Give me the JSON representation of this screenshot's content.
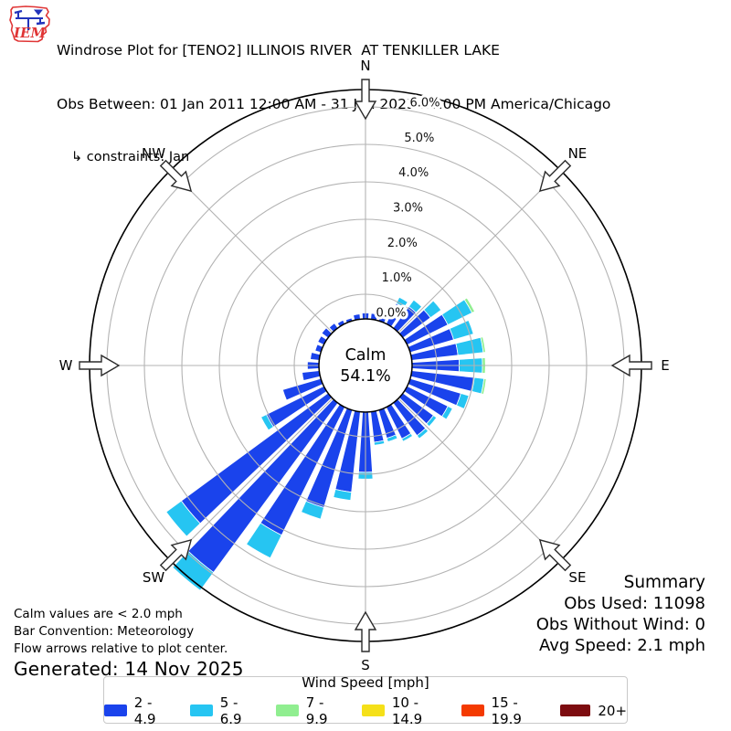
{
  "header": {
    "title": "Windrose Plot for [TENO2] ILLINOIS RIVER  AT TENKILLER LAKE",
    "subtitle": "Obs Between: 01 Jan 2011 12:00 AM - 31 Jan 2025 11:00 PM America/Chicago",
    "constraints": "↳ constraints: Jan",
    "logo_text": "IEM"
  },
  "notes": {
    "line1": "Calm values are < 2.0 mph",
    "line2": "Bar Convention: Meteorology",
    "line3": "Flow arrows relative to plot center.",
    "generated": "Generated: 14 Nov 2025"
  },
  "summary": {
    "title": "Summary",
    "obs_used": "Obs Used: 11098",
    "obs_without_wind": "Obs Without Wind: 0",
    "avg_speed": "Avg Speed: 2.1 mph"
  },
  "legend": {
    "title": "Wind Speed [mph]"
  },
  "chart_data": {
    "type": "windrose",
    "title": "Windrose Plot for [TENO2] ILLINOIS RIVER AT TENKILLER LAKE",
    "units": "mph",
    "calm": {
      "label": "Calm",
      "value": "54.1%",
      "threshold_note": "Calm values are < 2.0 mph"
    },
    "radial_axis": {
      "unit": "%",
      "min": 0.0,
      "max": 6.0,
      "grid_step": 1.0
    },
    "ring_labels": [
      "0.0%",
      "1.0%",
      "2.0%",
      "3.0%",
      "4.0%",
      "5.0%",
      "6.0%"
    ],
    "directions": [
      "N",
      "NE",
      "E",
      "SE",
      "S",
      "SW",
      "W",
      "NW"
    ],
    "direction_azimuths": [
      0,
      45,
      90,
      135,
      180,
      225,
      270,
      315
    ],
    "speed_bins": [
      {
        "label": "2 - 4.9",
        "color": "#1a43ec"
      },
      {
        "label": "5 - 6.9",
        "color": "#26c5f2"
      },
      {
        "label": "7 - 9.9",
        "color": "#90ee90"
      },
      {
        "label": "10 - 14.9",
        "color": "#f5e019"
      },
      {
        "label": "15 - 19.9",
        "color": "#f43a00"
      },
      {
        "label": "20+",
        "color": "#7d0c10"
      }
    ],
    "petals_note": "36 sectors, azimuth degrees clockwise from North; stacked segment values are frequency % for speed bins 2-4.9 / 5-6.9 / 7-9.9 mph",
    "petals": [
      {
        "d": 0,
        "s": [
          0.5,
          0.0,
          0.0
        ]
      },
      {
        "d": 10,
        "s": [
          0.5,
          0.0,
          0.0
        ]
      },
      {
        "d": 20,
        "s": [
          0.6,
          0.06,
          0.0
        ]
      },
      {
        "d": 30,
        "s": [
          0.95,
          0.18,
          0.0
        ]
      },
      {
        "d": 40,
        "s": [
          1.05,
          0.22,
          0.0
        ]
      },
      {
        "d": 50,
        "s": [
          1.25,
          0.35,
          0.0
        ]
      },
      {
        "d": 60,
        "s": [
          1.55,
          0.72,
          0.08
        ]
      },
      {
        "d": 70,
        "s": [
          1.55,
          0.55,
          0.0
        ]
      },
      {
        "d": 80,
        "s": [
          1.58,
          0.68,
          0.06
        ]
      },
      {
        "d": 90,
        "s": [
          1.6,
          0.62,
          0.08
        ]
      },
      {
        "d": 100,
        "s": [
          2.02,
          0.26,
          0.06
        ]
      },
      {
        "d": 110,
        "s": [
          1.75,
          0.22,
          0.0
        ]
      },
      {
        "d": 120,
        "s": [
          1.55,
          0.14,
          0.0
        ]
      },
      {
        "d": 130,
        "s": [
          1.35,
          0.1,
          0.0
        ]
      },
      {
        "d": 140,
        "s": [
          1.42,
          0.1,
          0.0
        ]
      },
      {
        "d": 150,
        "s": [
          1.28,
          0.08,
          0.0
        ]
      },
      {
        "d": 160,
        "s": [
          1.12,
          0.1,
          0.0
        ]
      },
      {
        "d": 170,
        "s": [
          1.16,
          0.08,
          0.0
        ]
      },
      {
        "d": 180,
        "s": [
          1.95,
          0.18,
          0.0
        ]
      },
      {
        "d": 190,
        "s": [
          2.5,
          0.22,
          0.0
        ]
      },
      {
        "d": 200,
        "s": [
          3.05,
          0.32,
          0.0
        ]
      },
      {
        "d": 210,
        "s": [
          4.15,
          0.68,
          0.0
        ]
      },
      {
        "d": 220,
        "s": [
          5.95,
          0.6,
          0.0
        ]
      },
      {
        "d": 230,
        "s": [
          5.2,
          0.5,
          0.0
        ]
      },
      {
        "d": 240,
        "s": [
          2.05,
          0.16,
          0.0
        ]
      },
      {
        "d": 250,
        "s": [
          1.4,
          0.0,
          0.0
        ]
      },
      {
        "d": 260,
        "s": [
          0.8,
          0.0,
          0.0
        ]
      },
      {
        "d": 270,
        "s": [
          0.65,
          0.0,
          0.0
        ]
      },
      {
        "d": 280,
        "s": [
          0.58,
          0.0,
          0.0
        ]
      },
      {
        "d": 290,
        "s": [
          0.5,
          0.0,
          0.0
        ]
      },
      {
        "d": 300,
        "s": [
          0.52,
          0.0,
          0.0
        ]
      },
      {
        "d": 310,
        "s": [
          0.55,
          0.0,
          0.0
        ]
      },
      {
        "d": 320,
        "s": [
          0.5,
          0.0,
          0.0
        ]
      },
      {
        "d": 330,
        "s": [
          0.45,
          0.0,
          0.0
        ]
      },
      {
        "d": 340,
        "s": [
          0.42,
          0.0,
          0.0
        ]
      },
      {
        "d": 350,
        "s": [
          0.48,
          0.0,
          0.0
        ]
      }
    ]
  }
}
